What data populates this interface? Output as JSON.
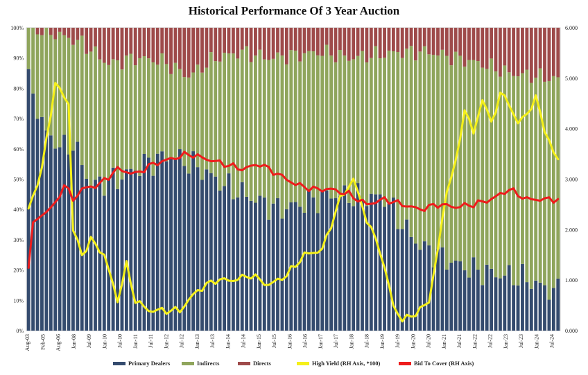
{
  "chart_data": {
    "type": "bar",
    "title": "Historical Performance Of 3 Year Auction",
    "stacked_percent": true,
    "x_tick_labels": [
      "Aug-03",
      "Feb-05",
      "Aug-06",
      "Jan-08",
      "Jul-09",
      "Jan-10",
      "Jul-10",
      "Jan-11",
      "Jul-11",
      "Jan-12",
      "Jul-12",
      "Jan-13",
      "Jul-13",
      "Jan-14",
      "Jul-14",
      "Jan-15",
      "Jul-15",
      "Jan-16",
      "Jul-16",
      "Jan-17",
      "Jul-17",
      "Jan-18",
      "Jul-18",
      "Jan-19",
      "Jul-19",
      "Jan-20",
      "Jul-20",
      "Jan-21",
      "Jul-21",
      "Jan-22",
      "Jul-22",
      "Jan-23",
      "Jul-23",
      "Jan-24",
      "Jul-24"
    ],
    "left_axis": {
      "ticks": [
        "0%",
        "10%",
        "20%",
        "30%",
        "40%",
        "50%",
        "60%",
        "70%",
        "80%",
        "90%",
        "100%"
      ],
      "ylim": [
        0,
        100
      ]
    },
    "right_axis": {
      "ticks": [
        "0.000",
        "1.000",
        "2.000",
        "3.000",
        "4.000",
        "5.000",
        "6.000"
      ],
      "ylim": [
        0,
        6
      ]
    },
    "num_bars": 120,
    "legend": [
      {
        "name": "Primary Dealers",
        "color": "#344b6e"
      },
      {
        "name": "Indirects",
        "color": "#8fa55c"
      },
      {
        "name": "Directs",
        "color": "#9e4a4a"
      },
      {
        "name": "High Yield (RH Axis, *100)",
        "color": "#f5f01a"
      },
      {
        "name": "Bid To Cover (RH Axis)",
        "color": "#ee1c1c"
      }
    ],
    "series_bars": {
      "primary_dealers": {
        "anchors_idx": [
          0,
          4,
          8,
          10,
          14,
          20,
          26,
          32,
          38,
          44,
          50,
          56,
          62,
          68,
          74,
          80,
          84,
          88,
          92,
          96,
          100,
          104,
          108,
          112,
          116,
          119
        ],
        "anchors_val": [
          82,
          65,
          60,
          62,
          48,
          50,
          55,
          58,
          54,
          48,
          44,
          40,
          42,
          45,
          44,
          44,
          35,
          28,
          25,
          22,
          20,
          19,
          18,
          17,
          14,
          13
        ]
      },
      "directs": {
        "anchors_idx": [
          0,
          6,
          12,
          18,
          24,
          30,
          36,
          42,
          48,
          54,
          60,
          66,
          72,
          78,
          84,
          90,
          96,
          102,
          108,
          114,
          119
        ],
        "anchors_val": [
          0,
          2,
          5,
          12,
          10,
          11,
          16,
          10,
          8,
          10,
          9,
          8,
          10,
          9,
          8,
          8,
          10,
          12,
          15,
          16,
          17
        ]
      }
    },
    "series_lines": {
      "high_yield": {
        "axis": "right",
        "anchors_idx": [
          0,
          3,
          6,
          9,
          10,
          12,
          14,
          17,
          20,
          22,
          24,
          27,
          30,
          34,
          38,
          42,
          46,
          50,
          54,
          58,
          62,
          66,
          70,
          73,
          76,
          79,
          82,
          84,
          86,
          88,
          90,
          92,
          94,
          96,
          98,
          100,
          102,
          104,
          106,
          108,
          110,
          112,
          114,
          116,
          118,
          119
        ],
        "anchors_val": [
          2.4,
          3.2,
          4.9,
          4.5,
          2.0,
          1.5,
          1.8,
          1.5,
          0.6,
          1.3,
          0.6,
          0.4,
          0.4,
          0.4,
          0.8,
          1.0,
          1.0,
          1.1,
          0.9,
          1.1,
          1.5,
          1.6,
          2.6,
          3.0,
          2.2,
          1.6,
          0.5,
          0.2,
          0.3,
          0.4,
          0.6,
          1.6,
          2.8,
          3.3,
          4.4,
          3.9,
          4.6,
          4.1,
          4.7,
          4.5,
          4.1,
          4.3,
          4.6,
          4.0,
          3.5,
          3.4
        ]
      },
      "bid_to_cover": {
        "axis": "right",
        "anchors_idx": [
          0,
          1,
          3,
          6,
          8,
          10,
          12,
          16,
          20,
          24,
          28,
          32,
          36,
          40,
          44,
          48,
          52,
          56,
          60,
          64,
          68,
          72,
          76,
          80,
          84,
          88,
          92,
          96,
          100,
          104,
          108,
          112,
          116,
          119
        ],
        "anchors_val": [
          1.3,
          2.1,
          2.3,
          2.5,
          2.9,
          2.6,
          2.8,
          2.9,
          3.2,
          3.1,
          3.3,
          3.4,
          3.5,
          3.4,
          3.3,
          3.2,
          3.3,
          3.1,
          2.9,
          2.8,
          2.8,
          2.7,
          2.5,
          2.6,
          2.5,
          2.4,
          2.5,
          2.45,
          2.5,
          2.6,
          2.8,
          2.6,
          2.6,
          2.6
        ]
      }
    }
  }
}
